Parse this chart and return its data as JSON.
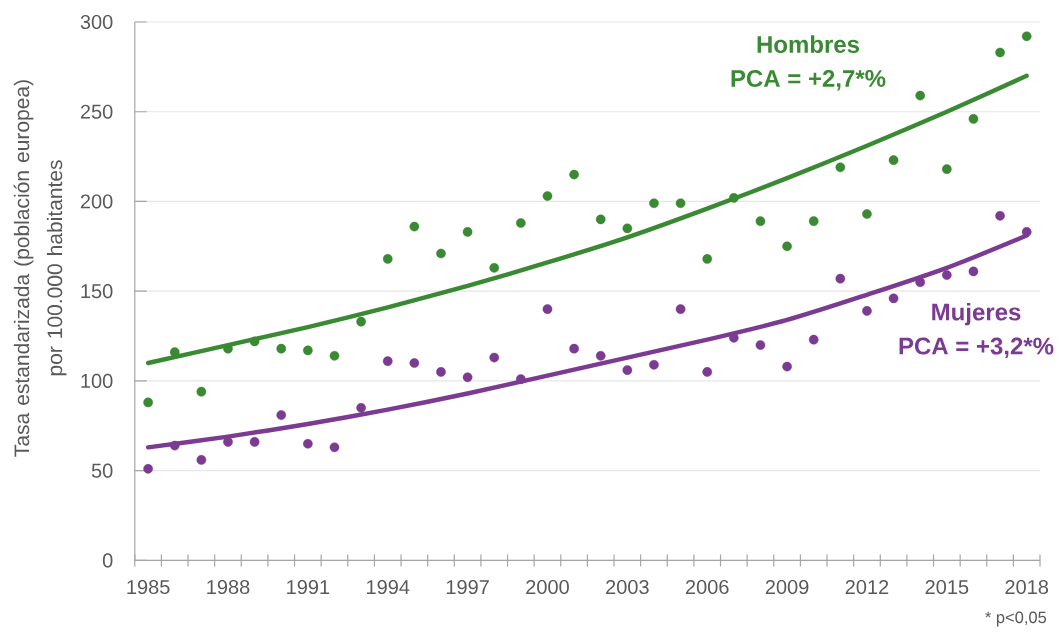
{
  "chart_data": {
    "type": "scatter",
    "ylabel": "Tasa estandarizada (población europea) por 100.000 habitantes",
    "x": [
      1985,
      1986,
      1987,
      1988,
      1989,
      1990,
      1991,
      1992,
      1993,
      1994,
      1995,
      1996,
      1997,
      1998,
      1999,
      2000,
      2001,
      2002,
      2003,
      2004,
      2005,
      2006,
      2007,
      2008,
      2009,
      2010,
      2011,
      2012,
      2013,
      2014,
      2015,
      2016,
      2017,
      2018
    ],
    "series": [
      {
        "name": "Hombres",
        "color": "#3A8A33",
        "values": [
          88,
          116,
          94,
          118,
          122,
          118,
          117,
          114,
          133,
          168,
          186,
          171,
          183,
          163,
          188,
          203,
          215,
          190,
          185,
          199,
          199,
          168,
          202,
          189,
          175,
          189,
          219,
          193,
          223,
          259,
          218,
          246,
          283,
          292
        ]
      },
      {
        "name": "Mujeres",
        "color": "#7B3B92",
        "values": [
          51,
          64,
          56,
          66,
          66,
          81,
          65,
          63,
          85,
          111,
          110,
          105,
          102,
          113,
          101,
          140,
          118,
          114,
          106,
          109,
          140,
          105,
          124,
          120,
          108,
          123,
          157,
          139,
          146,
          155,
          159,
          161,
          192,
          183
        ]
      },
      {
        "type": "line",
        "marker": "none",
        "color": "#3A8A33",
        "x": [
          1985,
          1988,
          1991,
          1994,
          1997,
          2000,
          2003,
          2006,
          2009,
          2012,
          2015,
          2018
        ],
        "values": [
          110,
          120,
          130,
          141,
          153,
          166,
          180,
          196,
          213,
          231,
          250,
          270
        ]
      },
      {
        "type": "line",
        "marker": "none",
        "color": "#7B3B92",
        "x": [
          1985,
          1988,
          1991,
          1994,
          1997,
          2000,
          2003,
          2006,
          2009,
          2012,
          2015,
          2018
        ],
        "values": [
          63,
          69,
          76,
          84,
          93,
          103,
          113,
          123,
          134,
          148,
          163,
          181
        ]
      }
    ],
    "annotations": [
      "PCA = +2,7*%",
      "PCA = +3,2*%",
      "* p<0,05"
    ],
    "xlim": [
      1984.5,
      2018.5
    ],
    "ylim": [
      0,
      300
    ],
    "xticks": [
      {
        "value": 1984.5,
        "label": null
      },
      1985,
      {
        "value": 1985.5,
        "label": null
      },
      {
        "value": 1986.5,
        "label": null
      },
      {
        "value": 1987.5,
        "label": null
      },
      1988,
      {
        "value": 1988.5,
        "label": null
      },
      {
        "value": 1989.5,
        "label": null
      },
      {
        "value": 1990.5,
        "label": null
      },
      1991,
      {
        "value": 1991.5,
        "label": null
      },
      {
        "value": 1992.5,
        "label": null
      },
      {
        "value": 1993.5,
        "label": null
      },
      1994,
      {
        "value": 1994.5,
        "label": null
      },
      {
        "value": 1995.5,
        "label": null
      },
      {
        "value": 1996.5,
        "label": null
      },
      1997,
      {
        "value": 1997.5,
        "label": null
      },
      {
        "value": 1998.5,
        "label": null
      },
      {
        "value": 1999.5,
        "label": null
      },
      2000,
      {
        "value": 2000.5,
        "label": null
      },
      {
        "value": 2001.5,
        "label": null
      },
      {
        "value": 2002.5,
        "label": null
      },
      2003,
      {
        "value": 2003.5,
        "label": null
      },
      {
        "value": 2004.5,
        "label": null
      },
      {
        "value": 2005.5,
        "label": null
      },
      2006,
      {
        "value": 2006.5,
        "label": null
      },
      {
        "value": 2007.5,
        "label": null
      },
      {
        "value": 2008.5,
        "label": null
      },
      2009,
      {
        "value": 2009.5,
        "label": null
      },
      {
        "value": 2010.5,
        "label": null
      },
      {
        "value": 2011.5,
        "label": null
      },
      2012,
      {
        "value": 2012.5,
        "label": null
      },
      {
        "value": 2013.5,
        "label": null
      },
      {
        "value": 2014.5,
        "label": null
      },
      2015,
      {
        "value": 2015.5,
        "label": null
      },
      {
        "value": 2016.5,
        "label": null
      },
      {
        "value": 2017.5,
        "label": null
      },
      2018,
      {
        "value": 2018.5,
        "label": null
      }
    ],
    "yticks": [
      0,
      50,
      100,
      150,
      200,
      250,
      300
    ],
    "grid": "y",
    "marker": "circle"
  }
}
